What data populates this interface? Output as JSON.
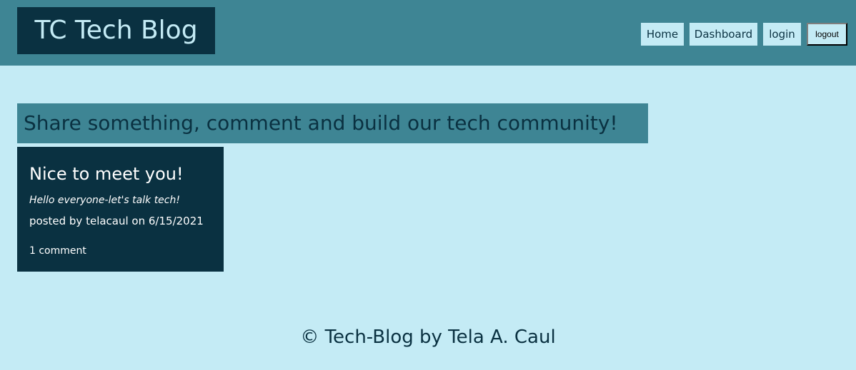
{
  "header": {
    "site_title": "TC Tech Blog",
    "nav": {
      "home": "Home",
      "dashboard": "Dashboard",
      "login": "login",
      "logout": "logout"
    }
  },
  "main": {
    "tagline": "Share something, comment and build our tech community!",
    "posts": [
      {
        "title": "Nice to meet you!",
        "body": "Hello everyone-let's talk tech!",
        "meta": "posted by telacaul on 6/15/2021",
        "comments": "1 comment"
      }
    ]
  },
  "footer": {
    "text": "© Tech-Blog by Tela A. Caul"
  },
  "colors": {
    "background": "#c4ebf5",
    "header": "#3e8594",
    "dark": "#0a3141"
  }
}
